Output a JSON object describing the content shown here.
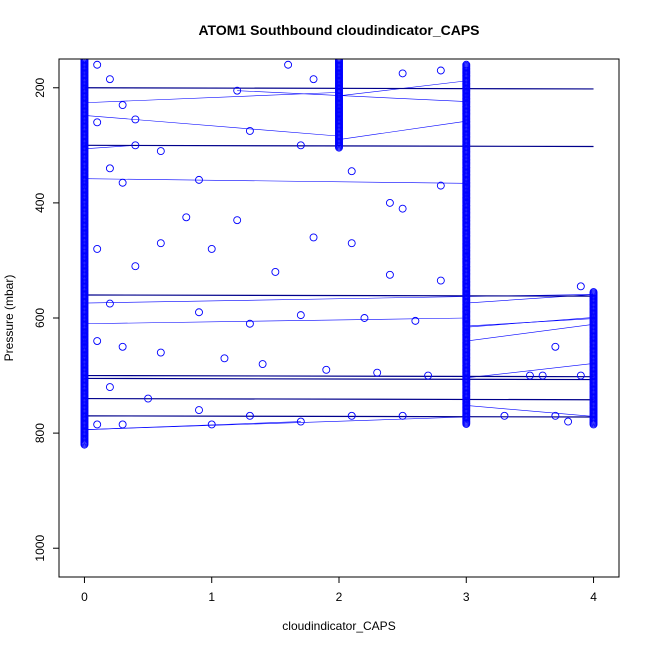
{
  "chart_data": {
    "type": "scatter",
    "title": "ATOM1 Southbound cloudindicator_CAPS",
    "xlabel": "cloudindicator_CAPS",
    "ylabel": "Pressure (mbar)",
    "xlim": [
      -0.2,
      4.2
    ],
    "ylim": [
      1050,
      150
    ],
    "y_reversed": true,
    "x_ticks": [
      "0",
      "1",
      "2",
      "3",
      "4"
    ],
    "y_ticks": [
      "200",
      "400",
      "600",
      "800",
      "1000"
    ],
    "grid": false,
    "legend": "none",
    "series_color": "#0000ff",
    "column_points": [
      {
        "x": 0,
        "p_min": 150,
        "p_max": 820,
        "dense": true
      },
      {
        "x": 2,
        "p_min": 150,
        "p_max": 305,
        "dense": true
      },
      {
        "x": 3,
        "p_min": 160,
        "p_max": 785,
        "dense": true
      },
      {
        "x": 4,
        "p_min": 555,
        "p_max": 785,
        "dense": true
      }
    ],
    "scatter_points": [
      {
        "x": 0.1,
        "y": 160
      },
      {
        "x": 0.2,
        "y": 185
      },
      {
        "x": 0.3,
        "y": 230
      },
      {
        "x": 0.1,
        "y": 260
      },
      {
        "x": 0.4,
        "y": 300
      },
      {
        "x": 0.6,
        "y": 310
      },
      {
        "x": 0.2,
        "y": 340
      },
      {
        "x": 0.9,
        "y": 360
      },
      {
        "x": 0.3,
        "y": 365
      },
      {
        "x": 1.3,
        "y": 275
      },
      {
        "x": 1.7,
        "y": 300
      },
      {
        "x": 2.1,
        "y": 345
      },
      {
        "x": 2.4,
        "y": 400
      },
      {
        "x": 2.5,
        "y": 410
      },
      {
        "x": 2.8,
        "y": 370
      },
      {
        "x": 0.8,
        "y": 425
      },
      {
        "x": 1.2,
        "y": 430
      },
      {
        "x": 1.8,
        "y": 460
      },
      {
        "x": 2.1,
        "y": 470
      },
      {
        "x": 0.6,
        "y": 470
      },
      {
        "x": 1.0,
        "y": 480
      },
      {
        "x": 0.1,
        "y": 480
      },
      {
        "x": 0.4,
        "y": 510
      },
      {
        "x": 1.5,
        "y": 520
      },
      {
        "x": 2.4,
        "y": 525
      },
      {
        "x": 2.8,
        "y": 535
      },
      {
        "x": 0.2,
        "y": 575
      },
      {
        "x": 0.9,
        "y": 590
      },
      {
        "x": 1.3,
        "y": 610
      },
      {
        "x": 1.7,
        "y": 595
      },
      {
        "x": 2.2,
        "y": 600
      },
      {
        "x": 2.6,
        "y": 605
      },
      {
        "x": 0.1,
        "y": 640
      },
      {
        "x": 0.3,
        "y": 650
      },
      {
        "x": 0.6,
        "y": 660
      },
      {
        "x": 1.1,
        "y": 670
      },
      {
        "x": 1.4,
        "y": 680
      },
      {
        "x": 1.9,
        "y": 690
      },
      {
        "x": 2.3,
        "y": 695
      },
      {
        "x": 2.7,
        "y": 700
      },
      {
        "x": 3.5,
        "y": 700
      },
      {
        "x": 3.7,
        "y": 650
      },
      {
        "x": 3.6,
        "y": 700
      },
      {
        "x": 3.9,
        "y": 700
      },
      {
        "x": 0.2,
        "y": 720
      },
      {
        "x": 0.5,
        "y": 740
      },
      {
        "x": 0.9,
        "y": 760
      },
      {
        "x": 1.3,
        "y": 770
      },
      {
        "x": 1.7,
        "y": 780
      },
      {
        "x": 2.1,
        "y": 770
      },
      {
        "x": 2.5,
        "y": 770
      },
      {
        "x": 3.7,
        "y": 770
      },
      {
        "x": 0.1,
        "y": 785
      },
      {
        "x": 0.3,
        "y": 785
      },
      {
        "x": 1.0,
        "y": 785
      },
      {
        "x": 3.9,
        "y": 545
      },
      {
        "x": 3.3,
        "y": 770
      },
      {
        "x": 3.8,
        "y": 780
      },
      {
        "x": 0.4,
        "y": 255
      },
      {
        "x": 1.2,
        "y": 205
      },
      {
        "x": 1.8,
        "y": 185
      },
      {
        "x": 2.5,
        "y": 175
      },
      {
        "x": 2.8,
        "y": 170
      },
      {
        "x": 1.6,
        "y": 160
      }
    ]
  }
}
